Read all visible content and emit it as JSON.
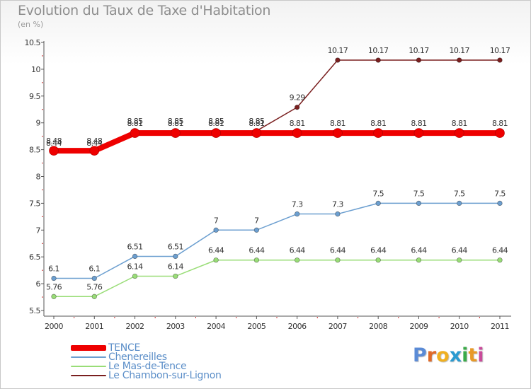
{
  "title": "Evolution du Taux de Taxe d'Habitation",
  "unit_label": "(en %)",
  "brand": {
    "text": "Proxiti",
    "letters": [
      "P",
      "r",
      "o",
      "x",
      "i",
      "t",
      "i"
    ],
    "letter_colors": [
      "#5b8bd6",
      "#e06a28",
      "#f0b020",
      "#2a9ad0",
      "#3aaa48",
      "#e89a28",
      "#c94a9a"
    ]
  },
  "chart_data": {
    "type": "line",
    "x": [
      "2000",
      "2001",
      "2002",
      "2003",
      "2004",
      "2005",
      "2006",
      "2007",
      "2008",
      "2009",
      "2010",
      "2011"
    ],
    "ylim": [
      5.5,
      10.5
    ],
    "yticks": [
      5.5,
      6,
      6.5,
      7,
      7.5,
      8,
      8.5,
      9,
      9.5,
      10,
      10.5
    ],
    "ytick_labels": [
      "5.5",
      "6",
      "6.5",
      "7",
      "7.5",
      "8",
      "8.5",
      "9",
      "9.5",
      "10",
      "10.5"
    ],
    "grid": false,
    "legend_position": "bottom-left",
    "series": [
      {
        "name": "Le Chambon-sur-Lignon",
        "color": "#7a1f1f",
        "values": [
          8.44,
          8.44,
          8.85,
          8.85,
          8.85,
          8.85,
          9.29,
          10.17,
          10.17,
          10.17,
          10.17,
          10.17
        ],
        "labels": [
          "8.44",
          "8.44",
          "8.85",
          "8.85",
          "8.85",
          "8.85",
          "9.29",
          "10.17",
          "10.17",
          "10.17",
          "10.17",
          "10.17"
        ]
      },
      {
        "name": "Le Mas-de-Tence",
        "color": "#99dd77",
        "values": [
          5.76,
          5.76,
          6.14,
          6.14,
          6.44,
          6.44,
          6.44,
          6.44,
          6.44,
          6.44,
          6.44,
          6.44
        ],
        "labels": [
          "5.76",
          "5.76",
          "6.14",
          "6.14",
          "6.44",
          "6.44",
          "6.44",
          "6.44",
          "6.44",
          "6.44",
          "6.44",
          "6.44"
        ]
      },
      {
        "name": "Chenereilles",
        "color": "#6c9fd0",
        "values": [
          6.1,
          6.1,
          6.51,
          6.51,
          7,
          7,
          7.3,
          7.3,
          7.5,
          7.5,
          7.5,
          7.5
        ],
        "labels": [
          "6.1",
          "6.1",
          "6.51",
          "6.51",
          "7",
          "7",
          "7.3",
          "7.3",
          "7.5",
          "7.5",
          "7.5",
          "7.5"
        ]
      },
      {
        "name": "TENCE",
        "color": "#ee0000",
        "values": [
          8.48,
          8.48,
          8.81,
          8.81,
          8.81,
          8.81,
          8.81,
          8.81,
          8.81,
          8.81,
          8.81,
          8.81
        ],
        "labels": [
          "8.48",
          "8.48",
          "8.81",
          "8.81",
          "8.81",
          "8.81",
          "8.81",
          "8.81",
          "8.81",
          "8.81",
          "8.81",
          "8.81"
        ]
      }
    ],
    "legend_order": [
      "TENCE",
      "Chenereilles",
      "Le Mas-de-Tence",
      "Le Chambon-sur-Lignon"
    ]
  }
}
